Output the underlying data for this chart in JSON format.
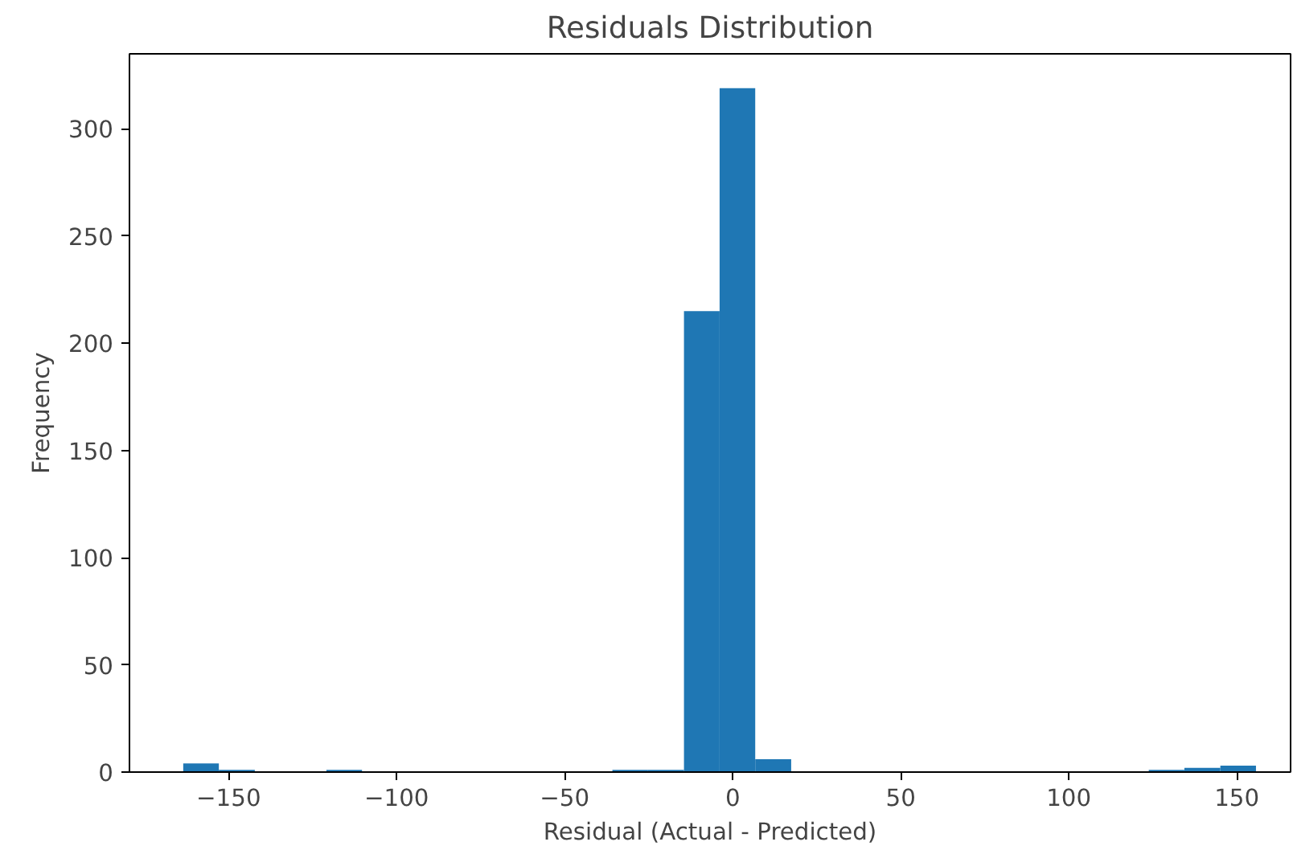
{
  "chart_data": {
    "type": "histogram",
    "title": "Residuals Distribution",
    "xlabel": "Residual (Actual - Predicted)",
    "ylabel": "Frequency",
    "bins": [
      -163.5,
      -152.9,
      -142.2,
      -131.6,
      -120.9,
      -110.3,
      -99.7,
      -89.0,
      -78.4,
      -67.7,
      -57.1,
      -46.5,
      -35.8,
      -25.2,
      -14.5,
      -3.9,
      6.7,
      17.4,
      28.0,
      38.7,
      49.3,
      59.9,
      70.6,
      81.2,
      91.9,
      102.5,
      113.1,
      123.8,
      134.4,
      145.1,
      155.7
    ],
    "values": [
      4,
      1,
      0,
      0,
      1,
      0,
      0,
      0,
      0,
      0,
      0,
      0,
      1,
      1,
      215,
      319,
      6,
      0,
      0,
      0,
      0,
      0,
      0,
      0,
      0,
      0,
      0,
      1,
      2,
      3
    ],
    "color": "#1f77b4",
    "xlim": [
      -179.5,
      166
    ],
    "ylim": [
      0,
      335
    ],
    "xticks": [
      {
        "value": -150,
        "label": "−150"
      },
      {
        "value": -100,
        "label": "−100"
      },
      {
        "value": -50,
        "label": "−50"
      },
      0,
      50,
      100,
      150
    ],
    "yticks": [
      0,
      50,
      100,
      150,
      200,
      250,
      300
    ],
    "grid": false
  }
}
